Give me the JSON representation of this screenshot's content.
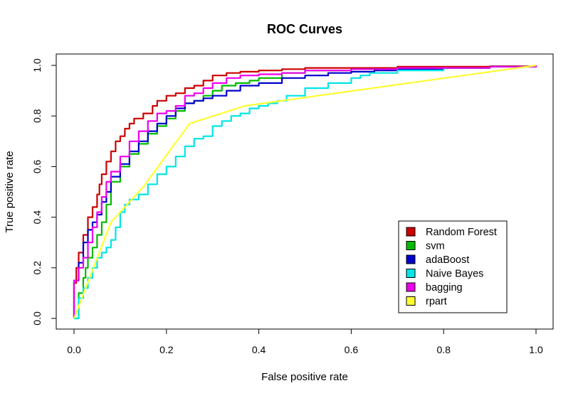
{
  "chart_data": {
    "type": "line",
    "title": "ROC Curves",
    "xlabel": "False positive rate",
    "ylabel": "True positive rate",
    "xlim": [
      0,
      1
    ],
    "ylim": [
      0,
      1
    ],
    "x_ticks": [
      "0.0",
      "0.2",
      "0.4",
      "0.6",
      "0.8",
      "1.0"
    ],
    "y_ticks": [
      "0.0",
      "0.2",
      "0.4",
      "0.6",
      "0.8",
      "1.0"
    ],
    "grid": false,
    "legend_position": "bottom-right",
    "series": [
      {
        "name": "Random Forest",
        "color": "#cc0000",
        "points": [
          [
            0,
            0
          ],
          [
            0,
            0.14
          ],
          [
            0.005,
            0.2
          ],
          [
            0.01,
            0.26
          ],
          [
            0.02,
            0.33
          ],
          [
            0.03,
            0.4
          ],
          [
            0.04,
            0.44
          ],
          [
            0.05,
            0.49
          ],
          [
            0.055,
            0.53
          ],
          [
            0.06,
            0.57
          ],
          [
            0.07,
            0.62
          ],
          [
            0.08,
            0.66
          ],
          [
            0.09,
            0.7
          ],
          [
            0.1,
            0.72
          ],
          [
            0.11,
            0.75
          ],
          [
            0.12,
            0.77
          ],
          [
            0.13,
            0.79
          ],
          [
            0.15,
            0.81
          ],
          [
            0.17,
            0.84
          ],
          [
            0.18,
            0.86
          ],
          [
            0.2,
            0.88
          ],
          [
            0.22,
            0.89
          ],
          [
            0.24,
            0.91
          ],
          [
            0.26,
            0.92
          ],
          [
            0.28,
            0.94
          ],
          [
            0.3,
            0.96
          ],
          [
            0.33,
            0.97
          ],
          [
            0.36,
            0.975
          ],
          [
            0.4,
            0.98
          ],
          [
            0.45,
            0.985
          ],
          [
            0.5,
            0.99
          ],
          [
            0.6,
            0.99
          ],
          [
            0.7,
            0.995
          ],
          [
            0.8,
            0.995
          ],
          [
            0.9,
            0.997
          ],
          [
            1,
            1
          ]
        ]
      },
      {
        "name": "svm",
        "color": "#00bb00",
        "points": [
          [
            0,
            0
          ],
          [
            0.01,
            0.1
          ],
          [
            0.02,
            0.16
          ],
          [
            0.025,
            0.2
          ],
          [
            0.03,
            0.24
          ],
          [
            0.04,
            0.28
          ],
          [
            0.05,
            0.33
          ],
          [
            0.06,
            0.38
          ],
          [
            0.07,
            0.45
          ],
          [
            0.08,
            0.54
          ],
          [
            0.1,
            0.6
          ],
          [
            0.12,
            0.65
          ],
          [
            0.14,
            0.69
          ],
          [
            0.16,
            0.73
          ],
          [
            0.18,
            0.76
          ],
          [
            0.2,
            0.79
          ],
          [
            0.22,
            0.82
          ],
          [
            0.24,
            0.85
          ],
          [
            0.26,
            0.86
          ],
          [
            0.28,
            0.88
          ],
          [
            0.3,
            0.9
          ],
          [
            0.32,
            0.92
          ],
          [
            0.35,
            0.93
          ],
          [
            0.38,
            0.94
          ],
          [
            0.4,
            0.95
          ],
          [
            0.45,
            0.97
          ],
          [
            0.5,
            0.98
          ],
          [
            0.6,
            0.985
          ],
          [
            0.7,
            0.99
          ],
          [
            0.8,
            0.99
          ],
          [
            0.9,
            0.995
          ],
          [
            1,
            1
          ]
        ]
      },
      {
        "name": "adaBoost",
        "color": "#0000cc",
        "points": [
          [
            0,
            0
          ],
          [
            0,
            0.15
          ],
          [
            0.01,
            0.22
          ],
          [
            0.02,
            0.3
          ],
          [
            0.03,
            0.35
          ],
          [
            0.04,
            0.38
          ],
          [
            0.05,
            0.41
          ],
          [
            0.06,
            0.46
          ],
          [
            0.07,
            0.5
          ],
          [
            0.08,
            0.56
          ],
          [
            0.1,
            0.61
          ],
          [
            0.12,
            0.66
          ],
          [
            0.14,
            0.7
          ],
          [
            0.16,
            0.74
          ],
          [
            0.18,
            0.77
          ],
          [
            0.2,
            0.8
          ],
          [
            0.22,
            0.83
          ],
          [
            0.24,
            0.85
          ],
          [
            0.26,
            0.86
          ],
          [
            0.28,
            0.87
          ],
          [
            0.3,
            0.88
          ],
          [
            0.33,
            0.9
          ],
          [
            0.36,
            0.92
          ],
          [
            0.4,
            0.93
          ],
          [
            0.45,
            0.95
          ],
          [
            0.5,
            0.96
          ],
          [
            0.55,
            0.97
          ],
          [
            0.6,
            0.975
          ],
          [
            0.65,
            0.98
          ],
          [
            0.7,
            0.985
          ],
          [
            0.8,
            0.99
          ],
          [
            0.9,
            0.995
          ],
          [
            1,
            1
          ]
        ]
      },
      {
        "name": "Naive Bayes",
        "color": "#00e5e5",
        "points": [
          [
            0,
            0
          ],
          [
            0.01,
            0.08
          ],
          [
            0.02,
            0.12
          ],
          [
            0.03,
            0.16
          ],
          [
            0.04,
            0.2
          ],
          [
            0.05,
            0.24
          ],
          [
            0.06,
            0.26
          ],
          [
            0.07,
            0.28
          ],
          [
            0.08,
            0.31
          ],
          [
            0.09,
            0.36
          ],
          [
            0.1,
            0.42
          ],
          [
            0.11,
            0.45
          ],
          [
            0.12,
            0.47
          ],
          [
            0.14,
            0.49
          ],
          [
            0.16,
            0.53
          ],
          [
            0.18,
            0.57
          ],
          [
            0.2,
            0.6
          ],
          [
            0.22,
            0.64
          ],
          [
            0.24,
            0.68
          ],
          [
            0.26,
            0.71
          ],
          [
            0.28,
            0.72
          ],
          [
            0.3,
            0.76
          ],
          [
            0.32,
            0.78
          ],
          [
            0.34,
            0.8
          ],
          [
            0.36,
            0.81
          ],
          [
            0.38,
            0.83
          ],
          [
            0.4,
            0.84
          ],
          [
            0.42,
            0.85
          ],
          [
            0.44,
            0.86
          ],
          [
            0.46,
            0.88
          ],
          [
            0.5,
            0.91
          ],
          [
            0.55,
            0.93
          ],
          [
            0.6,
            0.95
          ],
          [
            0.62,
            0.96
          ],
          [
            0.64,
            0.97
          ],
          [
            0.7,
            0.98
          ],
          [
            0.8,
            0.99
          ],
          [
            0.9,
            0.995
          ],
          [
            1,
            1
          ]
        ]
      },
      {
        "name": "bagging",
        "color": "#ee00ee",
        "points": [
          [
            0,
            0
          ],
          [
            0,
            0.15
          ],
          [
            0.01,
            0.2
          ],
          [
            0.02,
            0.24
          ],
          [
            0.03,
            0.3
          ],
          [
            0.04,
            0.36
          ],
          [
            0.05,
            0.42
          ],
          [
            0.06,
            0.48
          ],
          [
            0.07,
            0.54
          ],
          [
            0.08,
            0.58
          ],
          [
            0.1,
            0.64
          ],
          [
            0.12,
            0.7
          ],
          [
            0.14,
            0.74
          ],
          [
            0.16,
            0.78
          ],
          [
            0.18,
            0.81
          ],
          [
            0.2,
            0.82
          ],
          [
            0.22,
            0.84
          ],
          [
            0.24,
            0.88
          ],
          [
            0.26,
            0.89
          ],
          [
            0.28,
            0.91
          ],
          [
            0.3,
            0.93
          ],
          [
            0.33,
            0.95
          ],
          [
            0.36,
            0.96
          ],
          [
            0.4,
            0.965
          ],
          [
            0.45,
            0.97
          ],
          [
            0.5,
            0.98
          ],
          [
            0.6,
            0.985
          ],
          [
            0.7,
            0.99
          ],
          [
            0.8,
            0.99
          ],
          [
            0.9,
            0.995
          ],
          [
            1,
            1
          ]
        ]
      },
      {
        "name": "rpart",
        "color": "#ffff33",
        "points": [
          [
            0,
            0
          ],
          [
            0.08,
            0.38
          ],
          [
            0.15,
            0.52
          ],
          [
            0.25,
            0.77
          ],
          [
            0.37,
            0.84
          ],
          [
            1,
            1
          ]
        ]
      }
    ]
  }
}
